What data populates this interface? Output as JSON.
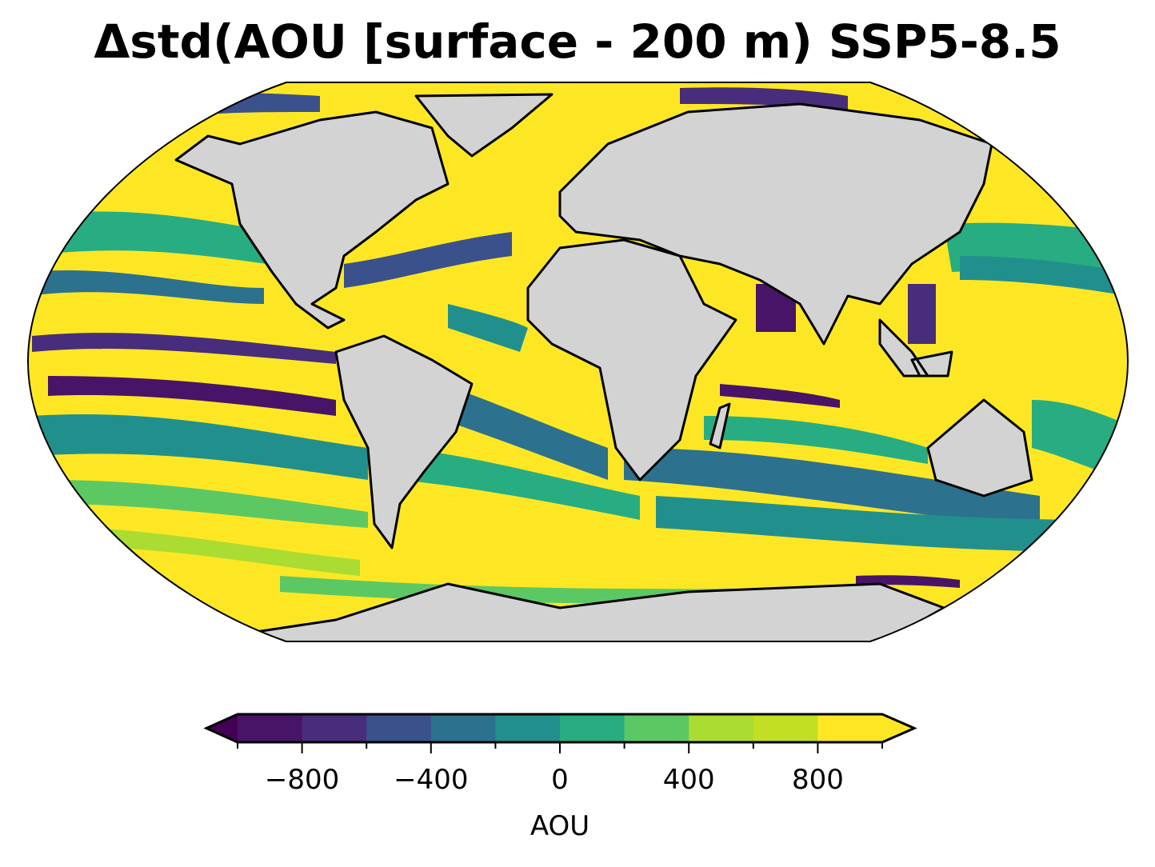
{
  "chart_data": {
    "type": "heatmap",
    "title": "Δstd(AOU [surface - 200 m) SSP5-8.5",
    "projection": "Robinson",
    "colorbar": {
      "label": "AOU",
      "levels": [
        -1000,
        -800,
        -600,
        -400,
        -200,
        0,
        200,
        400,
        600,
        800,
        1000
      ],
      "tick_labels": [
        "−800",
        "−400",
        "0",
        "400",
        "800"
      ],
      "tick_values": [
        -800,
        -400,
        0,
        400,
        800
      ],
      "extend": "both",
      "orientation": "horizontal",
      "placement": "bottom",
      "colors": [
        "#481467",
        "#472d7b",
        "#3b518b",
        "#2c718e",
        "#21908d",
        "#27ad81",
        "#5cc863",
        "#aadc32",
        "#c2df23",
        "#fde725"
      ],
      "under_color": "#440154",
      "over_color": "#fde725"
    },
    "land_color": "#d3d3d3",
    "coastline_color": "#000000"
  }
}
